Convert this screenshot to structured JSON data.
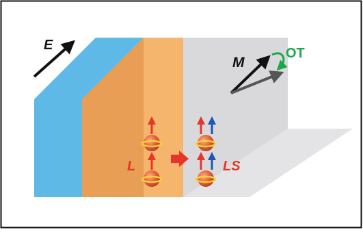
{
  "labels": {
    "field": "E",
    "magnetization": "M",
    "orbital_torque": "OT",
    "orbital_current": "L",
    "spin_orbital_current": "LS"
  },
  "colors": {
    "blue_layer": "#5fb9e6",
    "orange_layer": "#f6b56c",
    "gray_layer": "#d9d9dc",
    "red": "#e53628",
    "green": "#19a84c",
    "blue_spin": "#1f55b5",
    "ball": "#e5603a"
  }
}
